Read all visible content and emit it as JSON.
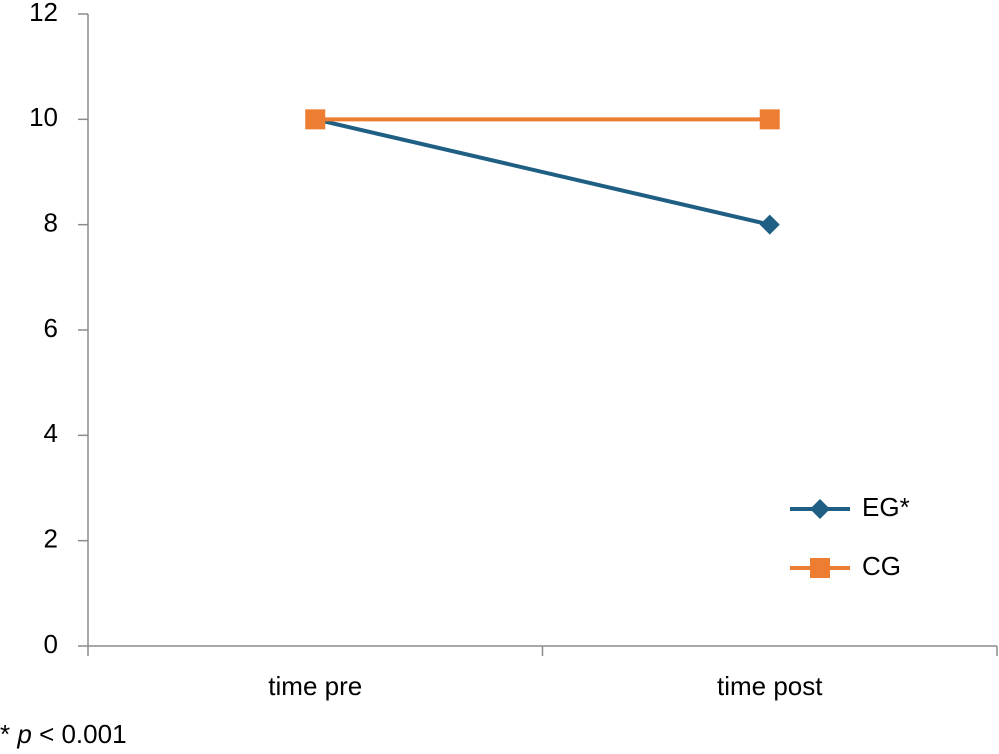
{
  "chart_data": {
    "type": "line",
    "categories": [
      "time pre",
      "time post"
    ],
    "series": [
      {
        "name": "EG*",
        "color": "#1f5f84",
        "marker": "diamond",
        "values": [
          10,
          8
        ]
      },
      {
        "name": "CG",
        "color": "#ed7d31",
        "marker": "square",
        "values": [
          10,
          10
        ]
      }
    ],
    "ylim": [
      0,
      12
    ],
    "yticks": [
      0,
      2,
      4,
      6,
      8,
      10,
      12
    ],
    "grid": false,
    "legend": "right",
    "annotation": [
      "*",
      "p",
      "< 0.001"
    ]
  }
}
